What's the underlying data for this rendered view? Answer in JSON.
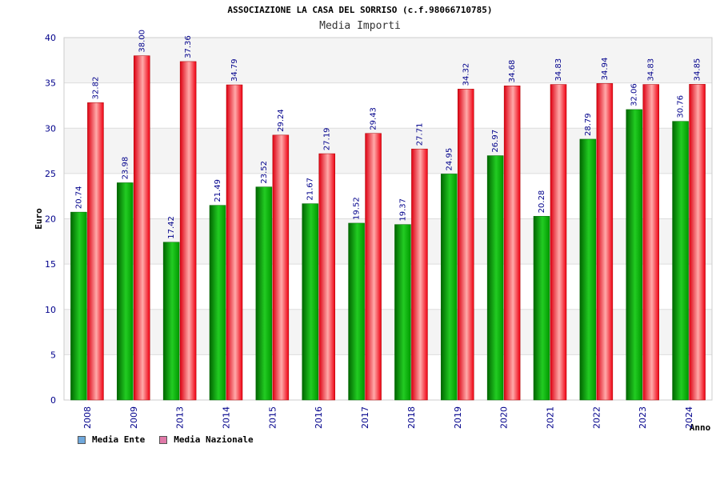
{
  "chart_data": {
    "type": "bar",
    "title": "ASSOCIAZIONE LA CASA DEL SORRISO (c.f.98066710785)",
    "subtitle": "Media Importi",
    "xlabel": "Anno",
    "ylabel": "Euro",
    "ylim": [
      0,
      40
    ],
    "yticks": [
      0,
      5,
      10,
      15,
      20,
      25,
      30,
      35,
      40
    ],
    "categories": [
      "2008",
      "2009",
      "2013",
      "2014",
      "2015",
      "2016",
      "2017",
      "2018",
      "2019",
      "2020",
      "2021",
      "2022",
      "2023",
      "2024"
    ],
    "series": [
      {
        "name": "Media Ente",
        "color": "#22aa22",
        "values": [
          20.74,
          23.98,
          17.42,
          21.49,
          23.52,
          21.67,
          19.52,
          19.37,
          24.95,
          26.97,
          20.28,
          28.79,
          32.06,
          30.76
        ],
        "labels": [
          "20.74",
          "23.98",
          "17.42",
          "21.49",
          "23.52",
          "21.67",
          "19.52",
          "19.37",
          "24.95",
          "26.97",
          "20.28",
          "28.79",
          "32.06",
          "30.76"
        ]
      },
      {
        "name": "Media Nazionale",
        "color": "#ee1122",
        "values": [
          32.82,
          38.0,
          37.36,
          34.79,
          29.24,
          27.19,
          29.43,
          27.71,
          34.32,
          34.68,
          34.83,
          34.94,
          34.83,
          34.85
        ],
        "labels": [
          "32.82",
          "38.00",
          "37.36",
          "34.79",
          "29.24",
          "27.19",
          "29.43",
          "27.71",
          "34.32",
          "34.68",
          "34.83",
          "34.94",
          "34.83",
          "34.85"
        ]
      }
    ],
    "legend": [
      {
        "label": "Media Ente",
        "color": "#6fa8dc"
      },
      {
        "label": "Media Nazionale",
        "color": "#e079a8"
      }
    ],
    "grid": true,
    "legend_position": "bottom-left"
  }
}
